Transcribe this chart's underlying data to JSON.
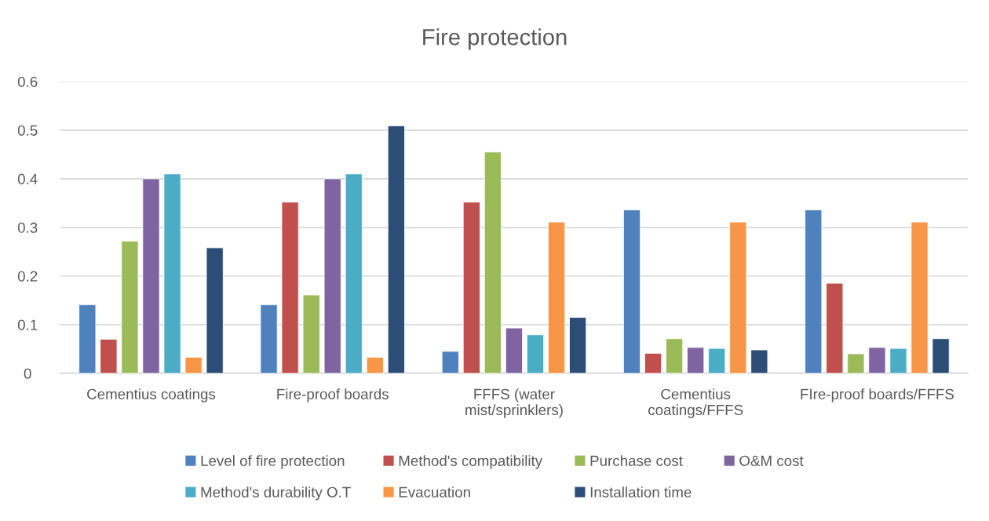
{
  "chart_data": {
    "type": "bar",
    "title": "Fire protection",
    "categories": [
      "Cementius coatings",
      "Fire-proof boards",
      "FFFS (water\nmist/sprinklers)",
      "Cementius\ncoatings/FFFS",
      "FIre-proof boards/FFFS"
    ],
    "series": [
      {
        "name": "Level of fire protection",
        "color": "#4f81bd",
        "values": [
          0.141,
          0.141,
          0.045,
          0.336,
          0.336
        ]
      },
      {
        "name": "Method's compatibility",
        "color": "#c0504d",
        "values": [
          0.07,
          0.352,
          0.352,
          0.041,
          0.185
        ]
      },
      {
        "name": "Purchase cost",
        "color": "#9bbb59",
        "values": [
          0.272,
          0.161,
          0.455,
          0.071,
          0.04
        ]
      },
      {
        "name": "O&M cost",
        "color": "#8064a2",
        "values": [
          0.4,
          0.4,
          0.093,
          0.053,
          0.053
        ]
      },
      {
        "name": "Method's durability O.T",
        "color": "#4bacc6",
        "values": [
          0.41,
          0.41,
          0.079,
          0.051,
          0.051
        ]
      },
      {
        "name": "Evacuation",
        "color": "#f79646",
        "values": [
          0.033,
          0.033,
          0.311,
          0.311,
          0.311
        ]
      },
      {
        "name": "Installation time",
        "color": "#2c4d75",
        "values": [
          0.258,
          0.509,
          0.115,
          0.048,
          0.071
        ]
      }
    ],
    "ylim": [
      0,
      0.6
    ],
    "yticks": [
      0,
      0.1,
      0.2,
      0.3,
      0.4,
      0.5,
      0.6
    ],
    "grid": "y",
    "legend": "bottom"
  }
}
